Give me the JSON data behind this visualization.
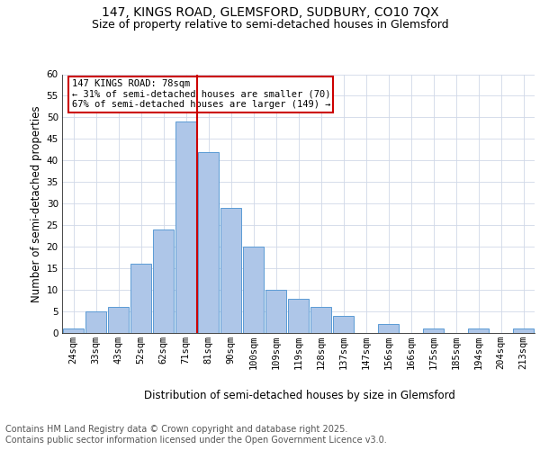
{
  "title1": "147, KINGS ROAD, GLEMSFORD, SUDBURY, CO10 7QX",
  "title2": "Size of property relative to semi-detached houses in Glemsford",
  "xlabel": "Distribution of semi-detached houses by size in Glemsford",
  "ylabel": "Number of semi-detached properties",
  "footer1": "Contains HM Land Registry data © Crown copyright and database right 2025.",
  "footer2": "Contains public sector information licensed under the Open Government Licence v3.0.",
  "bar_labels": [
    "24sqm",
    "33sqm",
    "43sqm",
    "52sqm",
    "62sqm",
    "71sqm",
    "81sqm",
    "90sqm",
    "100sqm",
    "109sqm",
    "119sqm",
    "128sqm",
    "137sqm",
    "147sqm",
    "156sqm",
    "166sqm",
    "175sqm",
    "185sqm",
    "194sqm",
    "204sqm",
    "213sqm"
  ],
  "bar_values": [
    1,
    5,
    6,
    16,
    24,
    49,
    42,
    29,
    20,
    10,
    8,
    6,
    4,
    0,
    2,
    0,
    1,
    0,
    1,
    0,
    1
  ],
  "bar_color": "#aec6e8",
  "bar_edge_color": "#5b9bd5",
  "grid_color": "#d0d8e8",
  "bin_width": 1,
  "annotation_box_text": "147 KINGS ROAD: 78sqm\n← 31% of semi-detached houses are smaller (70)\n67% of semi-detached houses are larger (149) →",
  "annotation_box_color": "#cc0000",
  "annotation_box_bg": "#ffffff",
  "ylim": [
    0,
    60
  ],
  "yticks": [
    0,
    5,
    10,
    15,
    20,
    25,
    30,
    35,
    40,
    45,
    50,
    55,
    60
  ],
  "title_fontsize": 10,
  "subtitle_fontsize": 9,
  "axis_fontsize": 8.5,
  "tick_fontsize": 7.5,
  "annot_fontsize": 7.5,
  "footer_fontsize": 7
}
